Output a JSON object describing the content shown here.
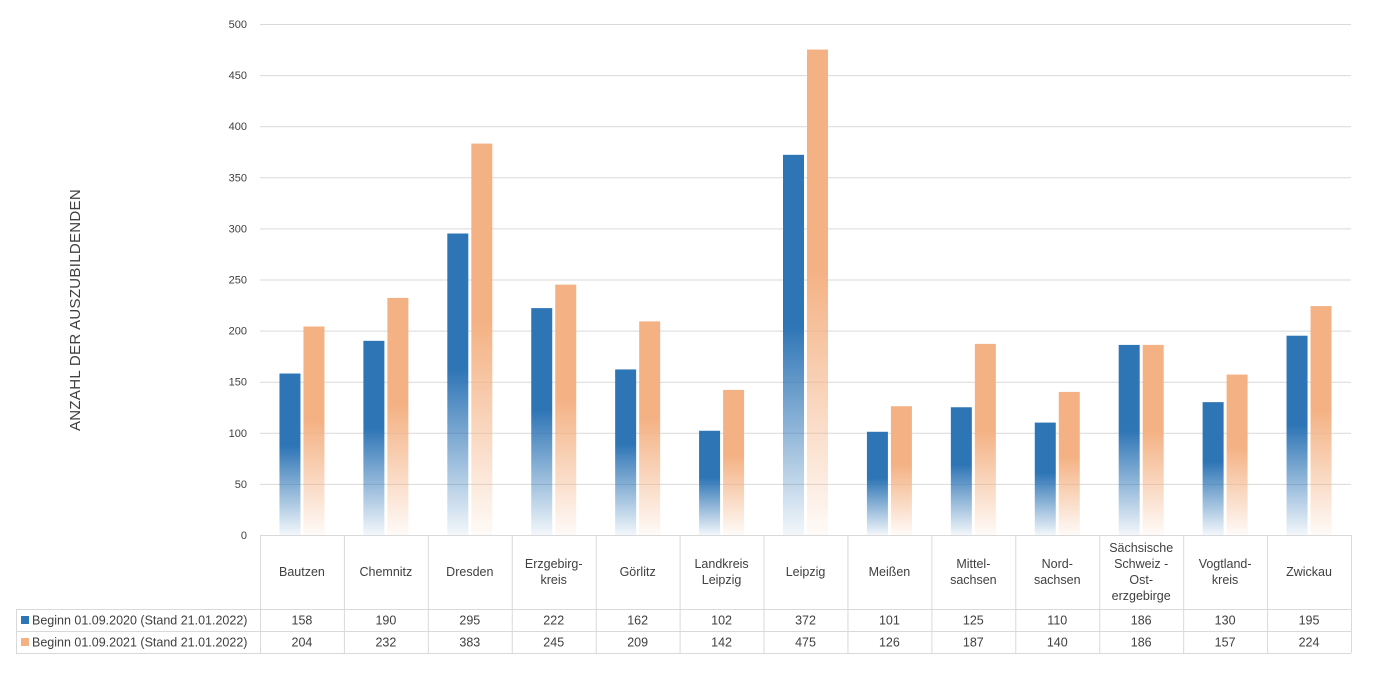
{
  "chart_data": {
    "type": "bar",
    "ylabel": "ANZAHL DER AUSZUBILDENDEN",
    "ylim": [
      0,
      500
    ],
    "yticks": [
      0,
      50,
      100,
      150,
      200,
      250,
      300,
      350,
      400,
      450,
      500
    ],
    "grid": true,
    "legend": "data-table-below",
    "categories": [
      [
        "Bautzen"
      ],
      [
        "Chemnitz"
      ],
      [
        "Dresden"
      ],
      [
        "Erzgebirg-",
        "kreis"
      ],
      [
        "Görlitz"
      ],
      [
        "Landkreis",
        "Leipzig"
      ],
      [
        "Leipzig"
      ],
      [
        "Meißen"
      ],
      [
        "Mittel-",
        "sachsen"
      ],
      [
        "Nord-",
        "sachsen"
      ],
      [
        "Sächsische",
        "Schweiz -",
        "Ost-",
        "erzgebirge"
      ],
      [
        "Vogtland-",
        "kreis"
      ],
      [
        "Zwickau"
      ]
    ],
    "series": [
      {
        "name": "Beginn 01.09.2020 (Stand 21.01.2022)",
        "color": "#2E75B6",
        "values": [
          158,
          190,
          295,
          222,
          162,
          102,
          372,
          101,
          125,
          110,
          186,
          130,
          195
        ]
      },
      {
        "name": "Beginn 01.09.2021 (Stand 21.01.2022)",
        "color": "#F4B183",
        "values": [
          204,
          232,
          383,
          245,
          209,
          142,
          475,
          126,
          187,
          140,
          186,
          157,
          224
        ]
      }
    ]
  }
}
